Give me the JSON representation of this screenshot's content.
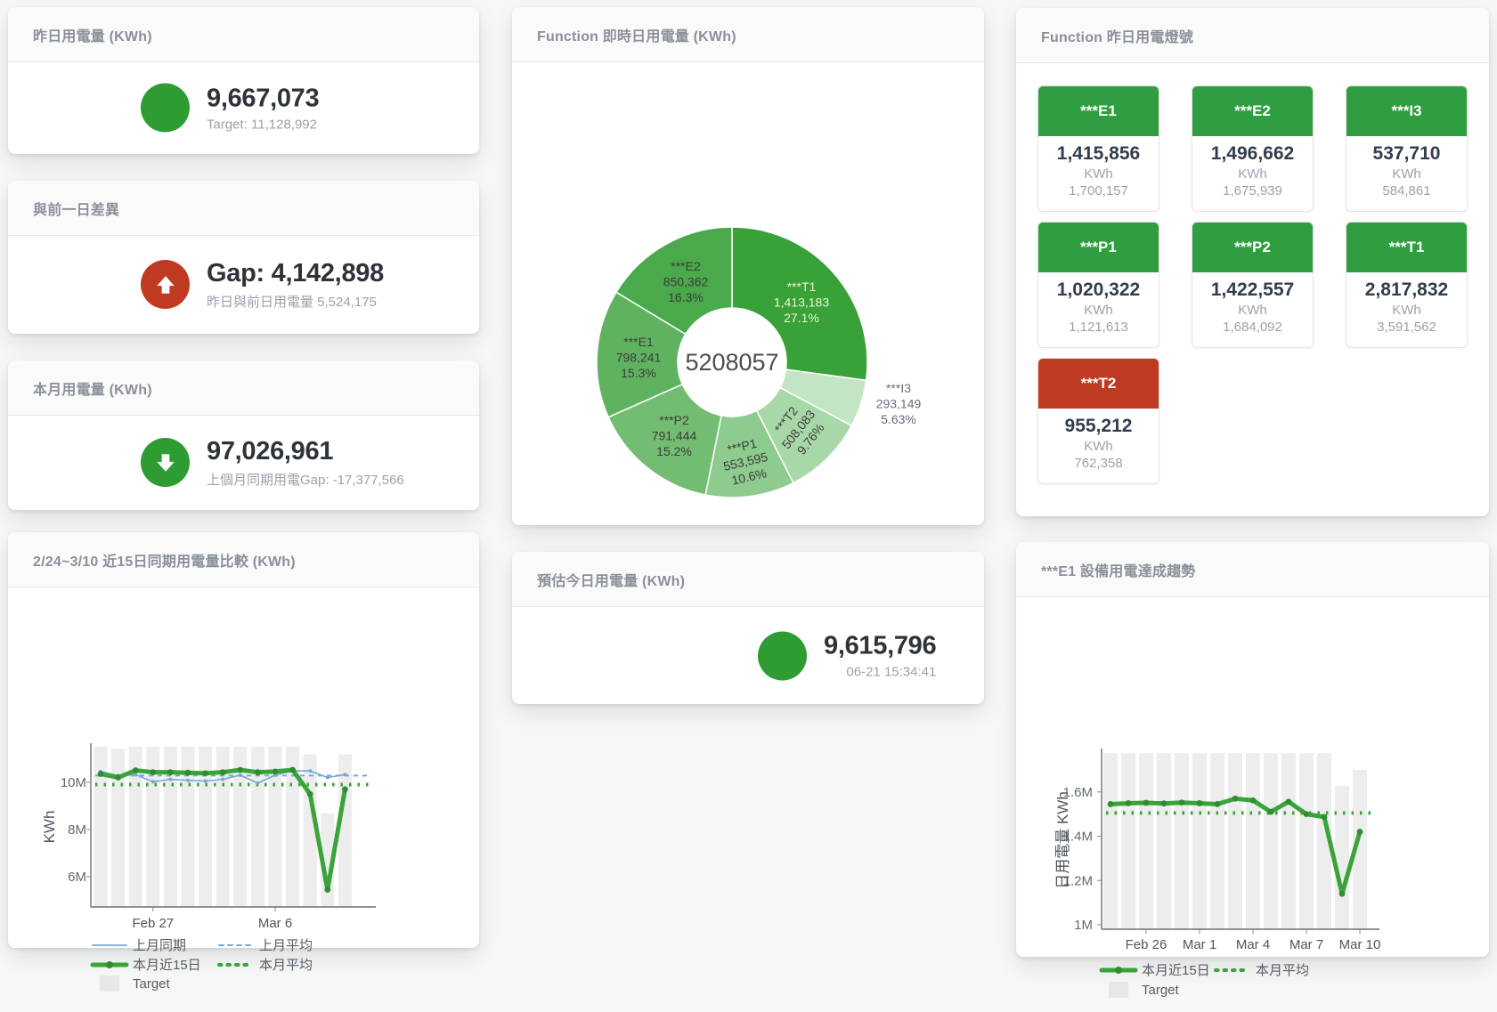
{
  "colors": {
    "green": "#2e9c33",
    "red": "#c03a22",
    "tile_green": "#2f9e41",
    "tile_red": "#bf3a22",
    "blue_line": "#73a8d4",
    "green_line": "#3aa33a",
    "bar_gray": "#ededed",
    "title_gray": "#8a909a",
    "value_dark": "#2e3338",
    "sub_gray": "#9ba1a9"
  },
  "cards": {
    "yesterday": {
      "title": "昨日用電量 (KWh)",
      "value": "9,667,073",
      "subtext": "Target: 11,128,992"
    },
    "gap": {
      "title": "與前一日差異",
      "value": "Gap: 4,142,898",
      "subtext": "昨日與前日用電量 5,524,175"
    },
    "month": {
      "title": "本月用電量 (KWh)",
      "value": "97,026,961",
      "subtext": "上個月同期用電Gap: -17,377,566"
    },
    "compare": {
      "title": "2/24~3/10 近15日同期用電量比較 (KWh)"
    },
    "donut": {
      "title": "Function 即時日用電量 (KWh)"
    },
    "estimate": {
      "title": "預估今日用電量 (KWh)",
      "value": "9,615,796",
      "subtext": "06-21 15:34:41"
    },
    "lights": {
      "title": "Function 昨日用電燈號"
    },
    "trend": {
      "title": "***E1 設備用電達成趨勢"
    }
  },
  "lights": {
    "tiles": [
      {
        "label": "***E1",
        "value": "1,415,856",
        "unit": "KWh",
        "target": "1,700,157",
        "header_color": "#2f9e41"
      },
      {
        "label": "***E2",
        "value": "1,496,662",
        "unit": "KWh",
        "target": "1,675,939",
        "header_color": "#2f9e41"
      },
      {
        "label": "***I3",
        "value": "537,710",
        "unit": "KWh",
        "target": "584,861",
        "header_color": "#2f9e41"
      },
      {
        "label": "***P1",
        "value": "1,020,322",
        "unit": "KWh",
        "target": "1,121,613",
        "header_color": "#2f9e41"
      },
      {
        "label": "***P2",
        "value": "1,422,557",
        "unit": "KWh",
        "target": "1,684,092",
        "header_color": "#2f9e41"
      },
      {
        "label": "***T1",
        "value": "2,817,832",
        "unit": "KWh",
        "target": "3,591,562",
        "header_color": "#2f9e41"
      },
      {
        "label": "***T2",
        "value": "955,212",
        "unit": "KWh",
        "target": "762,358",
        "header_color": "#bf3a22"
      }
    ]
  },
  "chart_data": [
    {
      "id": "donut",
      "type": "pie",
      "title": "Function 即時日用電量 (KWh)",
      "center_total": "5208057",
      "slices": [
        {
          "name": "***T1",
          "value": 1413183,
          "value_label": "1,413,183",
          "pct_label": "27.1%",
          "color": "#38a138"
        },
        {
          "name": "***I3",
          "value": 293149,
          "value_label": "293,149",
          "pct_label": "5.63%",
          "color": "#c3e5c3"
        },
        {
          "name": "***T2",
          "value": 508083,
          "value_label": "508,083",
          "pct_label": "9.76%",
          "color": "#a8d8a8"
        },
        {
          "name": "***P1",
          "value": 553595,
          "value_label": "553,595",
          "pct_label": "10.6%",
          "color": "#8ecb8e"
        },
        {
          "name": "***P2",
          "value": 791444,
          "value_label": "791,444",
          "pct_label": "15.2%",
          "color": "#73bd73"
        },
        {
          "name": "***E1",
          "value": 798241,
          "value_label": "798,241",
          "pct_label": "15.3%",
          "color": "#5fb35f"
        },
        {
          "name": "***E2",
          "value": 850362,
          "value_label": "850,362",
          "pct_label": "16.3%",
          "color": "#4aa94b"
        }
      ]
    },
    {
      "id": "compare",
      "type": "line+bar",
      "title": "2/24~3/10 近15日同期用電量比較 (KWh)",
      "ylabel": "KWh",
      "unit": "M KWh",
      "ylim": [
        4.72,
        11.5
      ],
      "yticks": [
        {
          "v": 6,
          "label": "6M"
        },
        {
          "v": 8,
          "label": "8M"
        },
        {
          "v": 10,
          "label": "10M"
        }
      ],
      "xticks": [
        {
          "i": 3,
          "label": "Feb 27"
        },
        {
          "i": 10,
          "label": "Mar 6"
        }
      ],
      "bars": {
        "name": "Target",
        "color": "#ededed",
        "values": [
          11.5,
          11.42,
          11.5,
          11.5,
          11.5,
          11.5,
          11.5,
          11.5,
          11.5,
          11.5,
          11.5,
          11.5,
          11.18,
          8.68,
          11.18
        ]
      },
      "series": [
        {
          "name": "上月同期",
          "style": "thin",
          "color": "#73a8d4",
          "values": [
            10.45,
            10.28,
            10.32,
            10.02,
            10.12,
            10.08,
            10.05,
            10.12,
            10.3,
            9.96,
            10.3,
            10.48,
            10.48,
            10.2,
            10.32
          ]
        },
        {
          "name": "本月近15日",
          "style": "thick",
          "color": "#3aa33a",
          "values": [
            10.35,
            10.2,
            10.5,
            10.42,
            10.42,
            10.4,
            10.38,
            10.42,
            10.52,
            10.42,
            10.45,
            10.52,
            9.5,
            5.45,
            9.7
          ]
        }
      ],
      "avg_lines": [
        {
          "name": "上月平均",
          "color": "#73a8d4",
          "style": "dashed",
          "v": 10.28
        },
        {
          "name": "本月平均",
          "color": "#3aa33a",
          "style": "dotted",
          "v": 9.9
        }
      ],
      "legend": {
        "grid": "off",
        "position": "bottom"
      }
    },
    {
      "id": "trend",
      "type": "line+bar",
      "title": "***E1 設備用電達成趨勢",
      "ylabel": "日用電量 KWh",
      "unit": "M KWh",
      "ylim": [
        0.98,
        1.78
      ],
      "yticks": [
        {
          "v": 1,
          "label": "1M"
        },
        {
          "v": 1.2,
          "label": "1.2M"
        },
        {
          "v": 1.4,
          "label": "1.4M"
        },
        {
          "v": 1.6,
          "label": "1.6M"
        }
      ],
      "xticks": [
        {
          "i": 2,
          "label": "Feb 26"
        },
        {
          "i": 5,
          "label": "Mar 1"
        },
        {
          "i": 8,
          "label": "Mar 4"
        },
        {
          "i": 11,
          "label": "Mar 7"
        },
        {
          "i": 14,
          "label": "Mar 10"
        }
      ],
      "bars": {
        "name": "Target",
        "color": "#ededed",
        "values": [
          1.775,
          1.775,
          1.775,
          1.775,
          1.775,
          1.775,
          1.775,
          1.775,
          1.775,
          1.775,
          1.775,
          1.775,
          1.775,
          1.628,
          1.7
        ]
      },
      "series": [
        {
          "name": "本月近15日",
          "style": "thick",
          "color": "#3aa33a",
          "values": [
            1.545,
            1.549,
            1.551,
            1.548,
            1.552,
            1.549,
            1.545,
            1.57,
            1.562,
            1.51,
            1.556,
            1.5,
            1.487,
            1.14,
            1.42
          ]
        }
      ],
      "avg_lines": [
        {
          "name": "本月平均",
          "color": "#3aa33a",
          "style": "dotted",
          "v": 1.505
        }
      ],
      "legend": {
        "grid": "off",
        "position": "bottom"
      }
    }
  ]
}
